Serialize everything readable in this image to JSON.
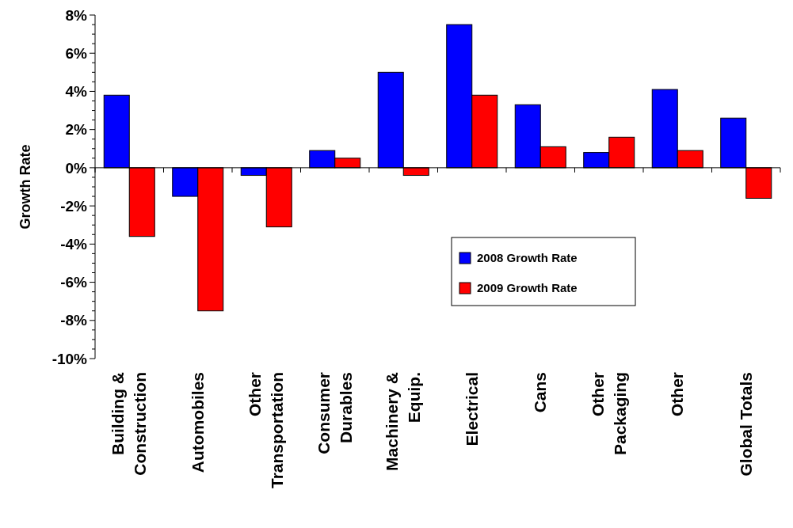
{
  "chart_data": {
    "type": "bar",
    "ylabel": "Growth Rate",
    "categories": [
      "Building &\nConstruction",
      "Automobiles",
      "Other\nTransportation",
      "Consumer\nDurables",
      "Machinery &\nEquip.",
      "Electrical",
      "Cans",
      "Other\nPackaging",
      "Other",
      "Global Totals"
    ],
    "series": [
      {
        "name": "2008 Growth Rate",
        "color": "#0000ff",
        "values": [
          3.8,
          -1.5,
          -0.4,
          0.9,
          5.0,
          7.5,
          3.3,
          0.8,
          4.1,
          2.6
        ]
      },
      {
        "name": "2009 Growth Rate",
        "color": "#ff0000",
        "values": [
          -3.6,
          -7.5,
          -3.1,
          0.5,
          -0.4,
          3.8,
          1.1,
          1.6,
          0.9,
          -1.6
        ]
      }
    ],
    "ylim": [
      -10,
      8
    ],
    "yticks": [
      {
        "value": -10,
        "label": "-10%"
      },
      {
        "value": -9.5,
        "label": null
      },
      {
        "value": -9,
        "label": null
      },
      {
        "value": -8.5,
        "label": null
      },
      {
        "value": -8,
        "label": "-8%"
      },
      {
        "value": -7.5,
        "label": null
      },
      {
        "value": -7,
        "label": null
      },
      {
        "value": -6.5,
        "label": null
      },
      {
        "value": -6,
        "label": "-6%"
      },
      {
        "value": -5.5,
        "label": null
      },
      {
        "value": -5,
        "label": null
      },
      {
        "value": -4.5,
        "label": null
      },
      {
        "value": -4,
        "label": "-4%"
      },
      {
        "value": -3.5,
        "label": null
      },
      {
        "value": -3,
        "label": null
      },
      {
        "value": -2.5,
        "label": null
      },
      {
        "value": -2,
        "label": "-2%"
      },
      {
        "value": -1.5,
        "label": null
      },
      {
        "value": -1,
        "label": null
      },
      {
        "value": -0.5,
        "label": null
      },
      {
        "value": 0,
        "label": "0%"
      },
      {
        "value": 0.5,
        "label": null
      },
      {
        "value": 1,
        "label": null
      },
      {
        "value": 1.5,
        "label": null
      },
      {
        "value": 2,
        "label": "2%"
      },
      {
        "value": 2.5,
        "label": null
      },
      {
        "value": 3,
        "label": null
      },
      {
        "value": 3.5,
        "label": null
      },
      {
        "value": 4,
        "label": "4%"
      },
      {
        "value": 4.5,
        "label": null
      },
      {
        "value": 5,
        "label": null
      },
      {
        "value": 5.5,
        "label": null
      },
      {
        "value": 6,
        "label": "6%"
      },
      {
        "value": 6.5,
        "label": null
      },
      {
        "value": 7,
        "label": null
      },
      {
        "value": 7.5,
        "label": null
      },
      {
        "value": 8,
        "label": "8%"
      }
    ],
    "legend": "center"
  }
}
